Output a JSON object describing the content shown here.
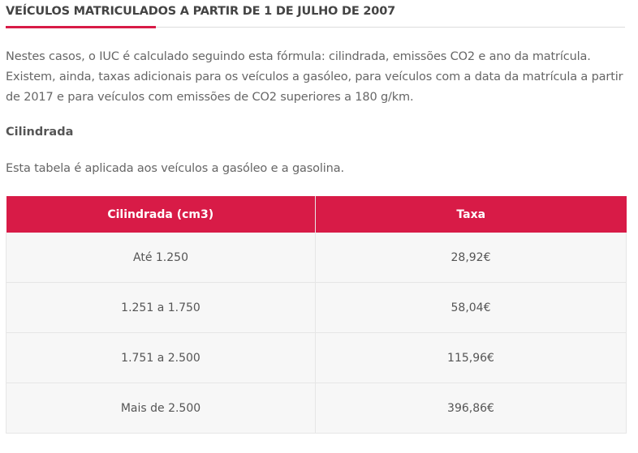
{
  "heading": "VEÍCULOS MATRICULADOS A PARTIR DE 1 DE JULHO DE 2007",
  "intro": "Nestes casos, o IUC é calculado seguindo esta fórmula: cilindrada, emissões CO2 e ano da matrícula. Existem, ainda, taxas adicionais para os veículos a gasóleo, para veículos com a data da matrícula a partir de 2017 e para veículos com emissões de CO2 superiores a 180 g/km.",
  "subheading": "Cilindrada",
  "note": "Esta tabela é aplicada aos veículos a gasóleo e a gasolina.",
  "accent_color": "#d81b47",
  "table": {
    "headers": [
      "Cilindrada (cm3)",
      "Taxa"
    ],
    "rows": [
      [
        "Até 1.250",
        "28,92€"
      ],
      [
        "1.251 a 1.750",
        "58,04€"
      ],
      [
        "1.751 a 2.500",
        "115,96€"
      ],
      [
        "Mais de 2.500",
        "396,86€"
      ]
    ]
  }
}
